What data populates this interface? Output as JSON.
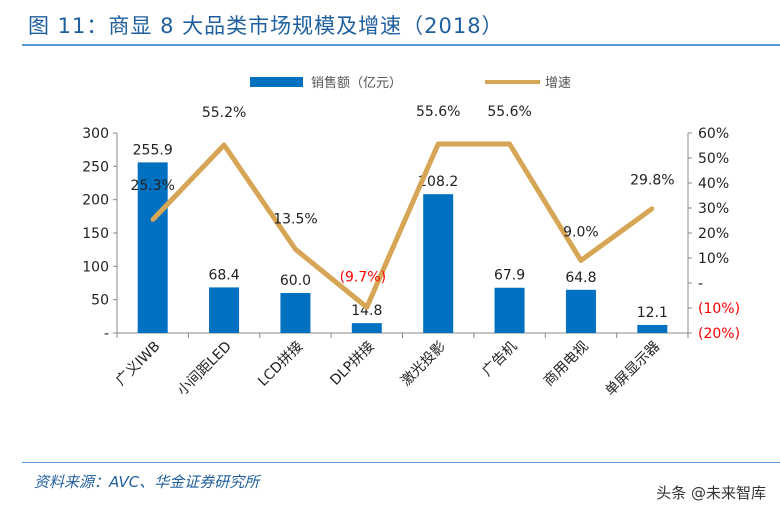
{
  "title": "图 11：商显 8 大品类市场规模及增速（2018）",
  "source": "资料来源：AVC、华金证券研究所",
  "watermark": "头条 @未来智库",
  "chart_data": {
    "type": "bar+line",
    "categories": [
      "广义IWB",
      "小间距LED",
      "LCD拼接",
      "DLP拼接",
      "激光投影",
      "广告机",
      "商用电视",
      "单屏显示器"
    ],
    "series": [
      {
        "name": "销售额（亿元）",
        "type": "bar",
        "axis": "left",
        "color": "#0070c0",
        "values": [
          255.9,
          68.4,
          60.0,
          14.8,
          208.2,
          67.9,
          64.8,
          12.1
        ],
        "labels": [
          "255.9",
          "68.4",
          "60.0",
          "14.8",
          "208.2",
          "67.9",
          "64.8",
          "12.1"
        ]
      },
      {
        "name": "增速",
        "type": "line",
        "axis": "right",
        "color": "#d6a555",
        "values": [
          25.3,
          55.2,
          13.5,
          -9.7,
          55.6,
          55.6,
          9.0,
          29.8
        ],
        "labels": [
          "25.3%",
          "55.2%",
          "13.5%",
          "(9.7%)",
          "55.6%",
          "55.6%",
          "9.0%",
          "29.8%"
        ]
      }
    ],
    "left_axis": {
      "ylim": [
        0,
        300
      ],
      "ticks": [
        "-",
        "50",
        "100",
        "150",
        "200",
        "250",
        "300"
      ]
    },
    "right_axis": {
      "ylim": [
        -20,
        60
      ],
      "ticks": [
        "(20%)",
        "(10%)",
        "-",
        "10%",
        "20%",
        "30%",
        "40%",
        "50%",
        "60%"
      ]
    },
    "negative_color": "#ff0000",
    "legend_position": "top",
    "grid": false
  }
}
